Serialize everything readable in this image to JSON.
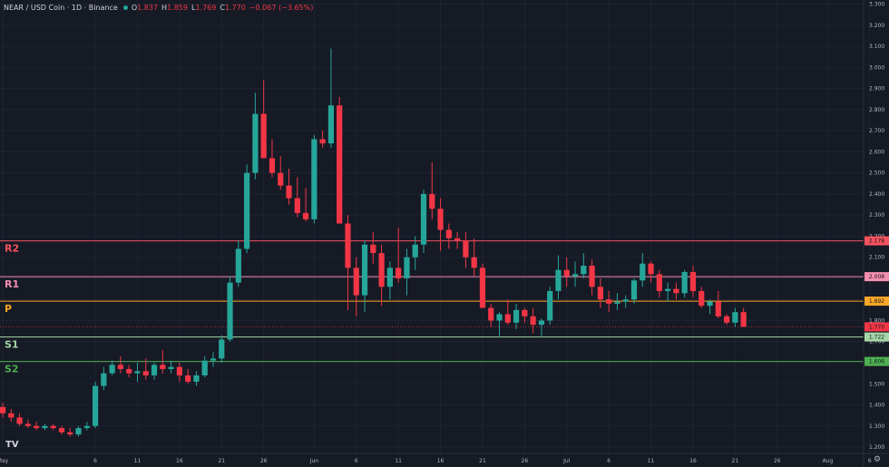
{
  "header": {
    "title": "NEAR / USD Coin · 1D · Binance",
    "o_label": "O",
    "o_value": "1.837",
    "h_label": "H",
    "h_value": "1.859",
    "l_label": "L",
    "l_value": "1.769",
    "c_label": "C",
    "c_value": "1.770",
    "change": "−0.067 (−3.65%)"
  },
  "logo": "TV",
  "colors": {
    "up": "#26a69a",
    "down": "#f23645",
    "background": "#161a25",
    "grid": "#1f2330"
  },
  "chart_data": {
    "type": "candlestick",
    "ylim": [
      1.17,
      3.32
    ],
    "y_ticks": [
      "1.200",
      "1.300",
      "1.400",
      "1.500",
      "1.600",
      "1.700",
      "1.800",
      "1.900",
      "2.000",
      "2.100",
      "2.200",
      "2.300",
      "2.400",
      "2.500",
      "2.600",
      "2.700",
      "2.800",
      "2.900",
      "3.000",
      "3.100",
      "3.200",
      "3.300"
    ],
    "x_ticks": [
      {
        "label": "May",
        "i": 0
      },
      {
        "label": "6",
        "i": 11
      },
      {
        "label": "11",
        "i": 16
      },
      {
        "label": "16",
        "i": 21
      },
      {
        "label": "21",
        "i": 26
      },
      {
        "label": "26",
        "i": 31
      },
      {
        "label": "Jun",
        "i": 37
      },
      {
        "label": "6",
        "i": 42
      },
      {
        "label": "11",
        "i": 47
      },
      {
        "label": "16",
        "i": 52
      },
      {
        "label": "21",
        "i": 57
      },
      {
        "label": "26",
        "i": 62
      },
      {
        "label": "Jul",
        "i": 67
      },
      {
        "label": "6",
        "i": 72
      },
      {
        "label": "11",
        "i": 77
      },
      {
        "label": "16",
        "i": 82
      },
      {
        "label": "21",
        "i": 87
      },
      {
        "label": "26",
        "i": 92
      },
      {
        "label": "Aug",
        "i": 98
      },
      {
        "label": "6",
        "i": 103
      }
    ],
    "last_price": "1.770",
    "levels": [
      {
        "name": "R2",
        "value": 2.178,
        "label": "2.178",
        "color": "#f7525f"
      },
      {
        "name": "R1",
        "value": 2.008,
        "label": "2.008",
        "color": "#f48fb1"
      },
      {
        "name": "P",
        "value": 1.892,
        "label": "1.892",
        "color": "#ffa726"
      },
      {
        "name": "S1",
        "value": 1.722,
        "label": "1.722",
        "color": "#a5d6a7"
      },
      {
        "name": "S2",
        "value": 1.606,
        "label": "1.606",
        "color": "#4caf50"
      }
    ],
    "ohlc": [
      [
        1.39,
        1.41,
        1.34,
        1.36
      ],
      [
        1.36,
        1.38,
        1.32,
        1.34
      ],
      [
        1.34,
        1.36,
        1.3,
        1.31
      ],
      [
        1.31,
        1.33,
        1.29,
        1.3
      ],
      [
        1.3,
        1.32,
        1.28,
        1.29
      ],
      [
        1.29,
        1.31,
        1.28,
        1.3
      ],
      [
        1.3,
        1.31,
        1.28,
        1.29
      ],
      [
        1.29,
        1.3,
        1.26,
        1.27
      ],
      [
        1.27,
        1.29,
        1.25,
        1.26
      ],
      [
        1.26,
        1.3,
        1.25,
        1.29
      ],
      [
        1.29,
        1.32,
        1.28,
        1.3
      ],
      [
        1.3,
        1.51,
        1.29,
        1.49
      ],
      [
        1.49,
        1.58,
        1.47,
        1.55
      ],
      [
        1.55,
        1.61,
        1.54,
        1.59
      ],
      [
        1.59,
        1.63,
        1.55,
        1.57
      ],
      [
        1.57,
        1.59,
        1.53,
        1.55
      ],
      [
        1.55,
        1.6,
        1.51,
        1.56
      ],
      [
        1.56,
        1.62,
        1.52,
        1.54
      ],
      [
        1.54,
        1.6,
        1.52,
        1.59
      ],
      [
        1.59,
        1.66,
        1.55,
        1.57
      ],
      [
        1.57,
        1.61,
        1.55,
        1.58
      ],
      [
        1.58,
        1.6,
        1.51,
        1.54
      ],
      [
        1.54,
        1.57,
        1.5,
        1.51
      ],
      [
        1.51,
        1.56,
        1.49,
        1.54
      ],
      [
        1.54,
        1.63,
        1.53,
        1.61
      ],
      [
        1.61,
        1.65,
        1.58,
        1.62
      ],
      [
        1.62,
        1.73,
        1.6,
        1.71
      ],
      [
        1.71,
        2.01,
        1.7,
        1.98
      ],
      [
        1.98,
        2.18,
        1.96,
        2.14
      ],
      [
        2.14,
        2.54,
        2.12,
        2.5
      ],
      [
        2.5,
        2.88,
        2.47,
        2.78
      ],
      [
        2.78,
        2.94,
        2.57,
        2.57
      ],
      [
        2.57,
        2.66,
        2.48,
        2.5
      ],
      [
        2.5,
        2.58,
        2.42,
        2.44
      ],
      [
        2.44,
        2.52,
        2.35,
        2.38
      ],
      [
        2.38,
        2.48,
        2.29,
        2.31
      ],
      [
        2.31,
        2.43,
        2.27,
        2.28
      ],
      [
        2.28,
        2.68,
        2.26,
        2.66
      ],
      [
        2.66,
        2.7,
        2.62,
        2.64
      ],
      [
        2.64,
        3.09,
        2.62,
        2.82
      ],
      [
        2.82,
        2.86,
        2.26,
        2.26
      ],
      [
        2.26,
        2.3,
        1.85,
        2.05
      ],
      [
        2.05,
        2.1,
        1.82,
        1.92
      ],
      [
        1.92,
        2.18,
        1.84,
        2.16
      ],
      [
        2.16,
        2.22,
        2.07,
        2.12
      ],
      [
        2.12,
        2.16,
        1.87,
        1.96
      ],
      [
        1.96,
        2.08,
        1.9,
        2.05
      ],
      [
        2.05,
        2.24,
        1.98,
        2.0
      ],
      [
        2.0,
        2.14,
        1.92,
        2.1
      ],
      [
        2.1,
        2.2,
        2.04,
        2.16
      ],
      [
        2.16,
        2.42,
        2.12,
        2.4
      ],
      [
        2.4,
        2.55,
        2.28,
        2.33
      ],
      [
        2.33,
        2.38,
        2.13,
        2.23
      ],
      [
        2.23,
        2.26,
        2.14,
        2.19
      ],
      [
        2.19,
        2.22,
        2.14,
        2.18
      ],
      [
        2.18,
        2.22,
        2.05,
        2.1
      ],
      [
        2.1,
        2.19,
        2.01,
        2.05
      ],
      [
        2.05,
        2.07,
        1.86,
        1.86
      ],
      [
        1.86,
        1.88,
        1.77,
        1.8
      ],
      [
        1.8,
        1.84,
        1.72,
        1.83
      ],
      [
        1.83,
        1.9,
        1.78,
        1.79
      ],
      [
        1.79,
        1.88,
        1.76,
        1.85
      ],
      [
        1.85,
        1.86,
        1.79,
        1.82
      ],
      [
        1.82,
        1.86,
        1.74,
        1.78
      ],
      [
        1.78,
        1.81,
        1.72,
        1.8
      ],
      [
        1.8,
        1.96,
        1.78,
        1.94
      ],
      [
        1.94,
        2.11,
        1.9,
        2.04
      ],
      [
        2.04,
        2.1,
        1.96,
        2.01
      ],
      [
        2.01,
        2.08,
        1.96,
        2.02
      ],
      [
        2.02,
        2.12,
        2.0,
        2.06
      ],
      [
        2.06,
        2.09,
        1.92,
        1.96
      ],
      [
        1.96,
        2.0,
        1.86,
        1.9
      ],
      [
        1.9,
        1.94,
        1.84,
        1.88
      ],
      [
        1.88,
        1.93,
        1.85,
        1.89
      ],
      [
        1.89,
        1.92,
        1.86,
        1.9
      ],
      [
        1.9,
        2.0,
        1.88,
        1.99
      ],
      [
        1.99,
        2.12,
        1.96,
        2.07
      ],
      [
        2.07,
        2.08,
        1.98,
        2.02
      ],
      [
        2.02,
        2.04,
        1.91,
        1.94
      ],
      [
        1.94,
        1.98,
        1.89,
        1.95
      ],
      [
        1.95,
        1.98,
        1.9,
        1.93
      ],
      [
        1.93,
        2.04,
        1.91,
        2.03
      ],
      [
        2.03,
        2.06,
        1.91,
        1.94
      ],
      [
        1.94,
        1.96,
        1.86,
        1.87
      ],
      [
        1.87,
        1.9,
        1.83,
        1.89
      ],
      [
        1.89,
        1.94,
        1.81,
        1.82
      ],
      [
        1.82,
        1.83,
        1.78,
        1.79
      ],
      [
        1.79,
        1.86,
        1.77,
        1.84
      ],
      [
        1.84,
        1.86,
        1.77,
        1.77
      ]
    ]
  }
}
